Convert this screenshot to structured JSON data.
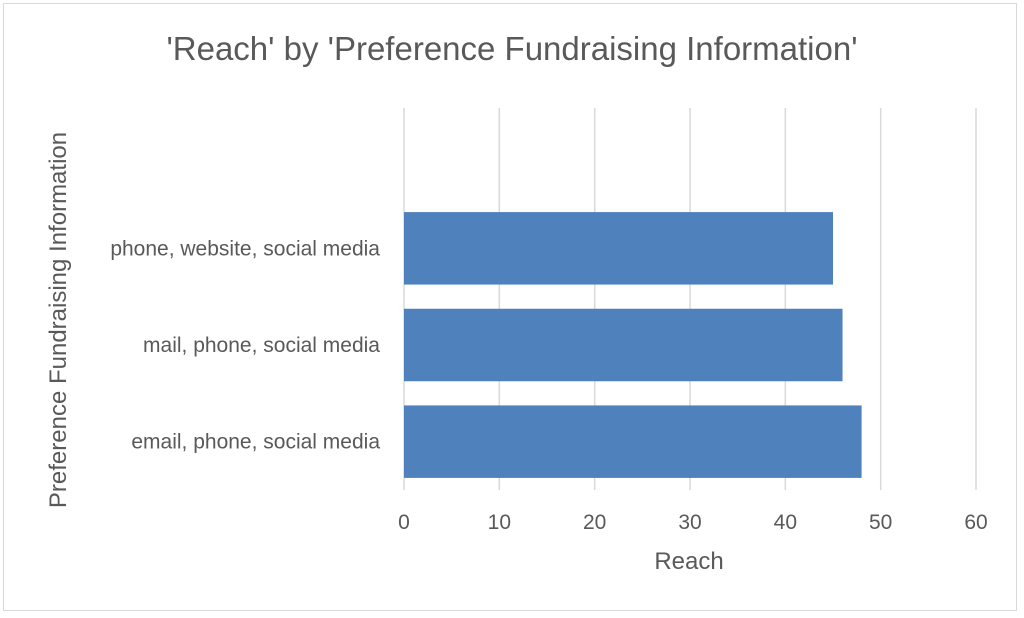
{
  "chart_data": {
    "type": "bar",
    "orientation": "horizontal",
    "title": "'Reach' by 'Preference Fundraising Information'",
    "xlabel": "Reach",
    "ylabel": "Preference Fundraising Information",
    "categories": [
      "phone, website, social media",
      "mail, phone, social media",
      "email, phone, social media"
    ],
    "values": [
      45,
      46,
      48
    ],
    "xlim": [
      0,
      60
    ],
    "xticks": [
      "0",
      "10",
      "20",
      "30",
      "40",
      "50",
      "60"
    ],
    "grid": "vertical",
    "legend": "none",
    "bar_color": "#4f81bd"
  }
}
